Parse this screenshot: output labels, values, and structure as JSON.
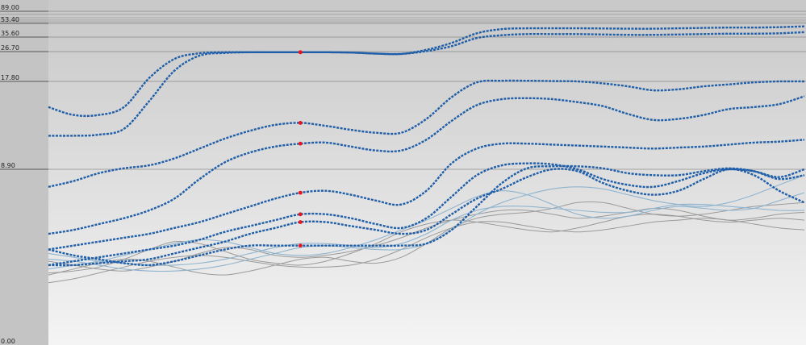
{
  "chart_data": {
    "type": "line",
    "title": "",
    "xlabel": "",
    "ylabel": "",
    "ylim": [
      0,
      89
    ],
    "y_scale": "nonlinear (compressed near top)",
    "grid": "horizontal lines at labeled ticks",
    "legend": "none",
    "y_ticks": [
      {
        "value": 89.0,
        "label": "89.00"
      },
      {
        "value": 53.4,
        "label": "53.40"
      },
      {
        "value": 35.6,
        "label": "35.60"
      },
      {
        "value": 26.7,
        "label": "26.70"
      },
      {
        "value": 17.8,
        "label": "17.80"
      },
      {
        "value": 8.9,
        "label": "8.90"
      },
      {
        "value": 0.0,
        "label": "0.00"
      }
    ],
    "x": [
      0,
      1,
      2,
      3,
      4,
      5,
      6,
      7,
      8,
      9,
      10,
      11,
      12,
      13,
      14,
      15,
      16,
      17,
      18,
      19,
      20,
      21,
      22,
      23,
      24,
      25,
      26,
      27,
      28,
      29,
      30
    ],
    "colors": {
      "background_top": "#c8c8c8",
      "background_bottom": "#f4f4f4",
      "left_axis_band": "#c4c4c4",
      "highlight_series": "#1f5ea8",
      "highlight_marker": "#e8141d",
      "grey_series": "#9a9a9a",
      "light_blue_series": "#8fb4cf",
      "grid": "#777777"
    },
    "highlight_marker_x": 10,
    "series": [
      {
        "style": "highlight",
        "values": [
          15.2,
          14.4,
          14.4,
          15.2,
          18.8,
          24.5,
          26.2,
          26.5,
          26.5,
          26.5,
          26.5,
          26.5,
          26.4,
          26.1,
          26.0,
          27.8,
          32.0,
          40.5,
          46.0,
          47.0,
          47.0,
          47.0,
          46.8,
          46.5,
          46.5,
          47.0,
          47.5,
          48.0,
          48.0,
          48.5,
          49.5
        ]
      },
      {
        "style": "highlight",
        "values": [
          12.3,
          12.3,
          12.4,
          13.0,
          15.8,
          21.0,
          25.5,
          26.3,
          26.5,
          26.5,
          26.5,
          26.5,
          26.4,
          26.1,
          26.0,
          27.0,
          30.0,
          35.0,
          38.0,
          39.5,
          39.5,
          39.5,
          39.0,
          38.5,
          38.5,
          39.0,
          39.5,
          40.0,
          40.0,
          40.5,
          42.0
        ]
      },
      {
        "style": "highlight",
        "values": [
          8.0,
          8.3,
          8.7,
          9.0,
          9.3,
          10.0,
          11.0,
          12.0,
          12.8,
          13.4,
          13.6,
          13.3,
          12.9,
          12.6,
          12.6,
          14.0,
          16.2,
          17.7,
          18.0,
          18.0,
          17.9,
          17.8,
          17.6,
          17.3,
          16.9,
          17.0,
          17.3,
          17.5,
          17.7,
          17.8,
          17.8
        ]
      },
      {
        "style": "highlight",
        "values": [
          5.6,
          5.8,
          6.1,
          6.4,
          6.8,
          7.4,
          8.4,
          9.6,
          10.6,
          11.2,
          11.5,
          11.6,
          11.2,
          10.8,
          10.8,
          11.9,
          13.8,
          15.4,
          16.0,
          16.1,
          16.0,
          15.7,
          15.3,
          14.5,
          13.9,
          14.0,
          14.4,
          15.0,
          15.2,
          15.5,
          16.3
        ]
      },
      {
        "style": "highlight",
        "values": [
          4.8,
          5.0,
          5.2,
          5.4,
          5.6,
          5.9,
          6.2,
          6.6,
          7.0,
          7.4,
          7.7,
          7.8,
          7.6,
          7.3,
          7.1,
          7.8,
          9.5,
          11.0,
          11.5,
          11.5,
          11.4,
          11.3,
          11.2,
          11.1,
          11.0,
          11.1,
          11.2,
          11.4,
          11.6,
          11.7,
          11.9
        ]
      },
      {
        "style": "highlight",
        "values": [
          4.0,
          4.2,
          4.4,
          4.6,
          4.8,
          5.0,
          5.3,
          5.7,
          6.0,
          6.3,
          6.6,
          6.6,
          6.4,
          6.1,
          5.9,
          6.4,
          7.5,
          8.6,
          9.3,
          9.5,
          9.4,
          8.9,
          8.4,
          8.1,
          8.0,
          8.3,
          8.7,
          8.9,
          8.8,
          8.5,
          8.9
        ]
      },
      {
        "style": "highlight",
        "values": [
          4.0,
          4.0,
          4.1,
          4.2,
          4.3,
          4.6,
          4.9,
          5.2,
          5.6,
          5.9,
          6.2,
          6.2,
          6.0,
          5.8,
          5.6,
          5.8,
          6.6,
          7.4,
          7.9,
          8.5,
          8.9,
          8.8,
          8.2,
          7.8,
          7.6,
          7.8,
          8.4,
          8.9,
          8.6,
          7.8,
          7.2
        ]
      },
      {
        "style": "highlight",
        "values": [
          4.8,
          4.5,
          4.3,
          4.1,
          4.0,
          4.2,
          4.5,
          4.8,
          5.0,
          5.0,
          5.0,
          5.0,
          5.0,
          5.0,
          5.0,
          5.1,
          5.8,
          7.0,
          8.2,
          9.0,
          9.2,
          9.2,
          9.0,
          8.7,
          8.6,
          8.6,
          8.8,
          9.0,
          8.8,
          8.4,
          8.6
        ]
      },
      {
        "style": "grey",
        "values": [
          4.2,
          4.0,
          3.8,
          3.7,
          3.9,
          4.2,
          4.6,
          4.9,
          4.8,
          4.5,
          4.4,
          4.5,
          4.7,
          5.0,
          5.4,
          5.9,
          6.3,
          6.6,
          6.8,
          6.8,
          6.6,
          6.4,
          6.5,
          6.7,
          6.9,
          6.8,
          6.5,
          6.3,
          6.4,
          6.6,
          6.7
        ]
      },
      {
        "style": "grey",
        "values": [
          3.6,
          3.7,
          3.9,
          4.3,
          4.8,
          5.2,
          5.1,
          4.7,
          4.3,
          4.1,
          4.0,
          4.2,
          4.6,
          5.1,
          5.7,
          6.1,
          6.3,
          6.2,
          6.0,
          5.8,
          5.7,
          5.9,
          6.2,
          6.5,
          6.6,
          6.5,
          6.3,
          6.2,
          6.3,
          6.4,
          6.3
        ]
      },
      {
        "style": "grey",
        "values": [
          3.5,
          3.8,
          4.1,
          4.3,
          4.2,
          3.9,
          3.6,
          3.5,
          3.7,
          4.0,
          4.3,
          4.4,
          4.2,
          4.1,
          4.4,
          5.1,
          5.9,
          6.4,
          6.6,
          6.7,
          6.9,
          7.2,
          7.2,
          6.9,
          6.6,
          6.5,
          6.6,
          6.8,
          7.0,
          7.1,
          7.2
        ]
      },
      {
        "style": "grey",
        "values": [
          3.1,
          3.3,
          3.6,
          3.9,
          4.2,
          4.4,
          4.5,
          4.4,
          4.2,
          4.0,
          3.9,
          3.9,
          4.0,
          4.3,
          4.8,
          5.4,
          5.9,
          6.2,
          6.2,
          6.0,
          5.8,
          5.7,
          5.8,
          6.0,
          6.2,
          6.3,
          6.4,
          6.3,
          6.1,
          5.9,
          5.8
        ]
      },
      {
        "style": "light_blue",
        "values": [
          3.8,
          4.0,
          4.2,
          4.5,
          4.8,
          5.1,
          5.3,
          5.2,
          4.9,
          4.6,
          4.5,
          4.6,
          4.9,
          5.3,
          5.8,
          6.3,
          6.9,
          7.5,
          7.8,
          7.6,
          7.1,
          6.6,
          6.4,
          6.5,
          6.8,
          7.0,
          6.9,
          6.8,
          6.9,
          7.3,
          7.7
        ]
      },
      {
        "style": "light_blue",
        "values": [
          4.3,
          4.2,
          4.0,
          3.8,
          3.7,
          3.7,
          3.8,
          4.0,
          4.3,
          4.6,
          4.9,
          5.0,
          4.9,
          4.8,
          4.8,
          5.1,
          5.8,
          6.6,
          7.2,
          7.6,
          7.9,
          8.0,
          7.9,
          7.6,
          7.3,
          7.1,
          7.0,
          7.2,
          7.6,
          8.1,
          8.6
        ]
      },
      {
        "style": "light_blue",
        "values": [
          4.6,
          4.4,
          4.2,
          4.1,
          4.0,
          4.0,
          4.1,
          4.3,
          4.6,
          4.9,
          5.1,
          5.1,
          5.0,
          4.9,
          5.1,
          5.6,
          6.3,
          6.8,
          7.0,
          7.0,
          6.9,
          6.8,
          6.7,
          6.7,
          6.9,
          7.1,
          7.1,
          7.0,
          6.9,
          6.8,
          6.8
        ]
      }
    ]
  }
}
